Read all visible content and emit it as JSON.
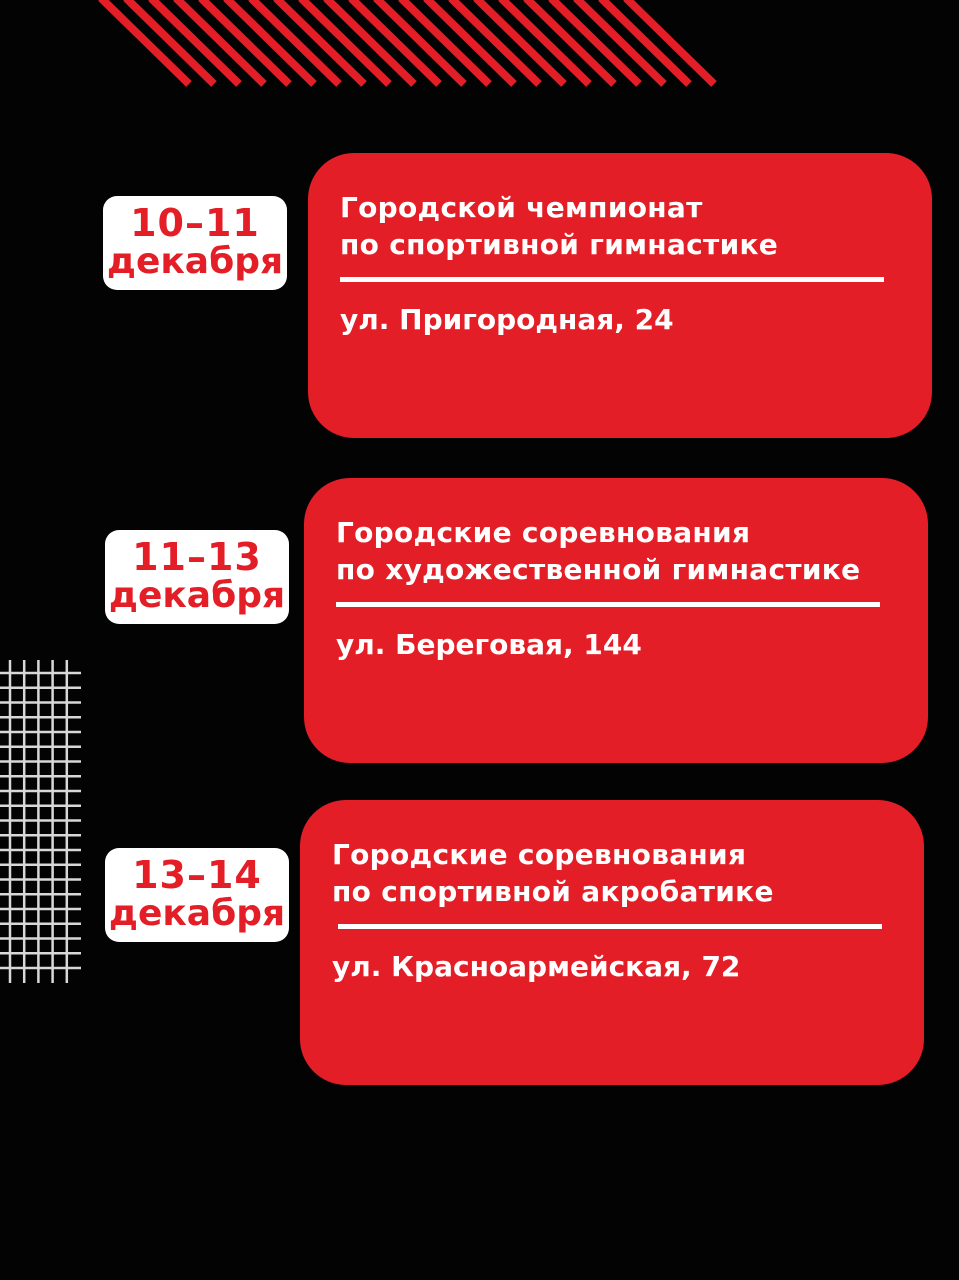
{
  "colors": {
    "background": "#030303",
    "accent": "#e41e26",
    "text_light": "#ffffff"
  },
  "events": [
    {
      "date_range": "10–11",
      "month": "декабря",
      "title_line1": "Городской чемпионат",
      "title_line2": "по спортивной гимнастике",
      "address": "ул. Пригородная, 24"
    },
    {
      "date_range": "11–13",
      "month": "декабря",
      "title_line1": "Городские соревнования",
      "title_line2": "по художественной гимнастике",
      "address": "ул. Береговая, 144"
    },
    {
      "date_range": "13–14",
      "month": "декабря",
      "title_line1": "Городские соревнования",
      "title_line2": "по спортивной акробатике",
      "address": "ул. Красноармейская, 72"
    }
  ]
}
